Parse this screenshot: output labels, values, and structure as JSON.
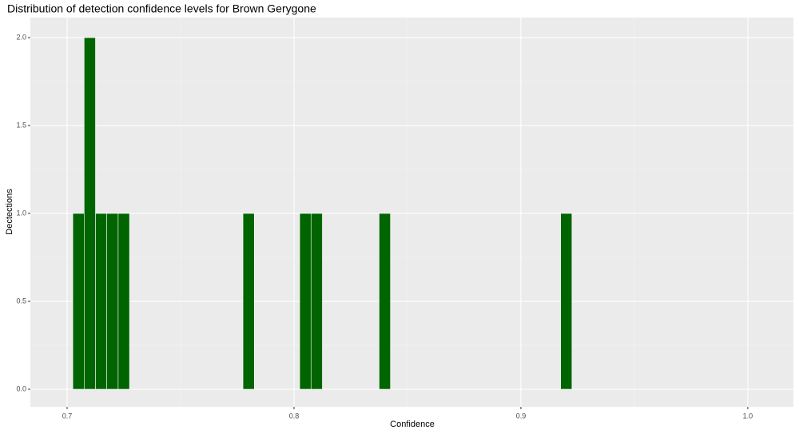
{
  "chart_data": {
    "type": "histogram",
    "title": "Distribution of detection confidence levels for Brown Gerygone",
    "x_label": "Confidence",
    "y_label": "Dectections",
    "color": "#006400",
    "grid": true,
    "bins": [
      0.7025,
      0.7075,
      0.7125,
      0.7175,
      0.7225,
      0.7275,
      0.7325,
      0.7375,
      0.7425,
      0.7475,
      0.7525,
      0.7575,
      0.7625,
      0.7675,
      0.7725,
      0.7775,
      0.7825,
      0.7875,
      0.7925,
      0.7975,
      0.8025,
      0.8075,
      0.8125,
      0.8175,
      0.8225,
      0.8275,
      0.8325,
      0.8375,
      0.8425,
      0.8475,
      0.8525,
      0.8575,
      0.8625,
      0.8675,
      0.8725,
      0.8775,
      0.8825,
      0.8875,
      0.8925,
      0.8975,
      0.9025,
      0.9075,
      0.9125,
      0.9175,
      0.9225
    ],
    "values": [
      1,
      2,
      1,
      1,
      1,
      0,
      0,
      0,
      0,
      0,
      0,
      0,
      0,
      0,
      0,
      1,
      0,
      0,
      0,
      0,
      1,
      1,
      0,
      0,
      0,
      0,
      0,
      1,
      0,
      0,
      0,
      0,
      0,
      0,
      0,
      0,
      0,
      0,
      0,
      0,
      0,
      0,
      0,
      1
    ],
    "xlim": [
      0.6838,
      1.0201
    ],
    "ylim": [
      -0.1,
      2.114
    ],
    "xticks": [
      0.7,
      0.8,
      0.9,
      {
        "value": 1.0,
        "label": "1.0"
      }
    ],
    "yticks": [
      {
        "value": 0,
        "label": "0.0"
      },
      0.5,
      {
        "value": 1,
        "label": "1.0"
      },
      1.5,
      {
        "value": 2,
        "label": "2.0"
      }
    ]
  }
}
